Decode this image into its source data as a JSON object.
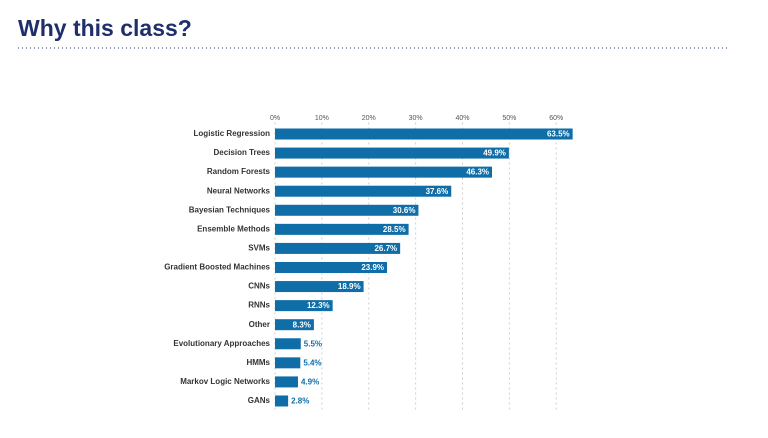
{
  "page_title": "Why this class?",
  "chart_data": {
    "type": "bar",
    "orientation": "horizontal",
    "categories": [
      "Logistic Regression",
      "Decision Trees",
      "Random Forests",
      "Neural Networks",
      "Bayesian Techniques",
      "Ensemble Methods",
      "SVMs",
      "Gradient Boosted Machines",
      "CNNs",
      "RNNs",
      "Other",
      "Evolutionary Approaches",
      "HMMs",
      "Markov Logic Networks",
      "GANs"
    ],
    "values": [
      63.5,
      49.9,
      46.3,
      37.6,
      30.6,
      28.5,
      26.7,
      23.9,
      18.9,
      12.3,
      8.3,
      5.5,
      5.4,
      4.9,
      2.8
    ],
    "value_labels": [
      "63.5%",
      "49.9%",
      "46.3%",
      "37.6%",
      "30.6%",
      "28.5%",
      "26.7%",
      "23.9%",
      "18.9%",
      "12.3%",
      "8.3%",
      "5.5%",
      "5.4%",
      "4.9%",
      "2.8%"
    ],
    "color": "#0f6ea8",
    "xlim": [
      0,
      64
    ],
    "xticks": [
      {
        "value": 0,
        "label": "0%"
      },
      {
        "value": 10,
        "label": "10%"
      },
      {
        "value": 20,
        "label": "20%"
      },
      {
        "value": 30,
        "label": "30%"
      },
      {
        "value": 40,
        "label": "40%"
      },
      {
        "value": 50,
        "label": "50%"
      },
      {
        "value": 60,
        "label": "60%"
      }
    ],
    "grid": true
  }
}
